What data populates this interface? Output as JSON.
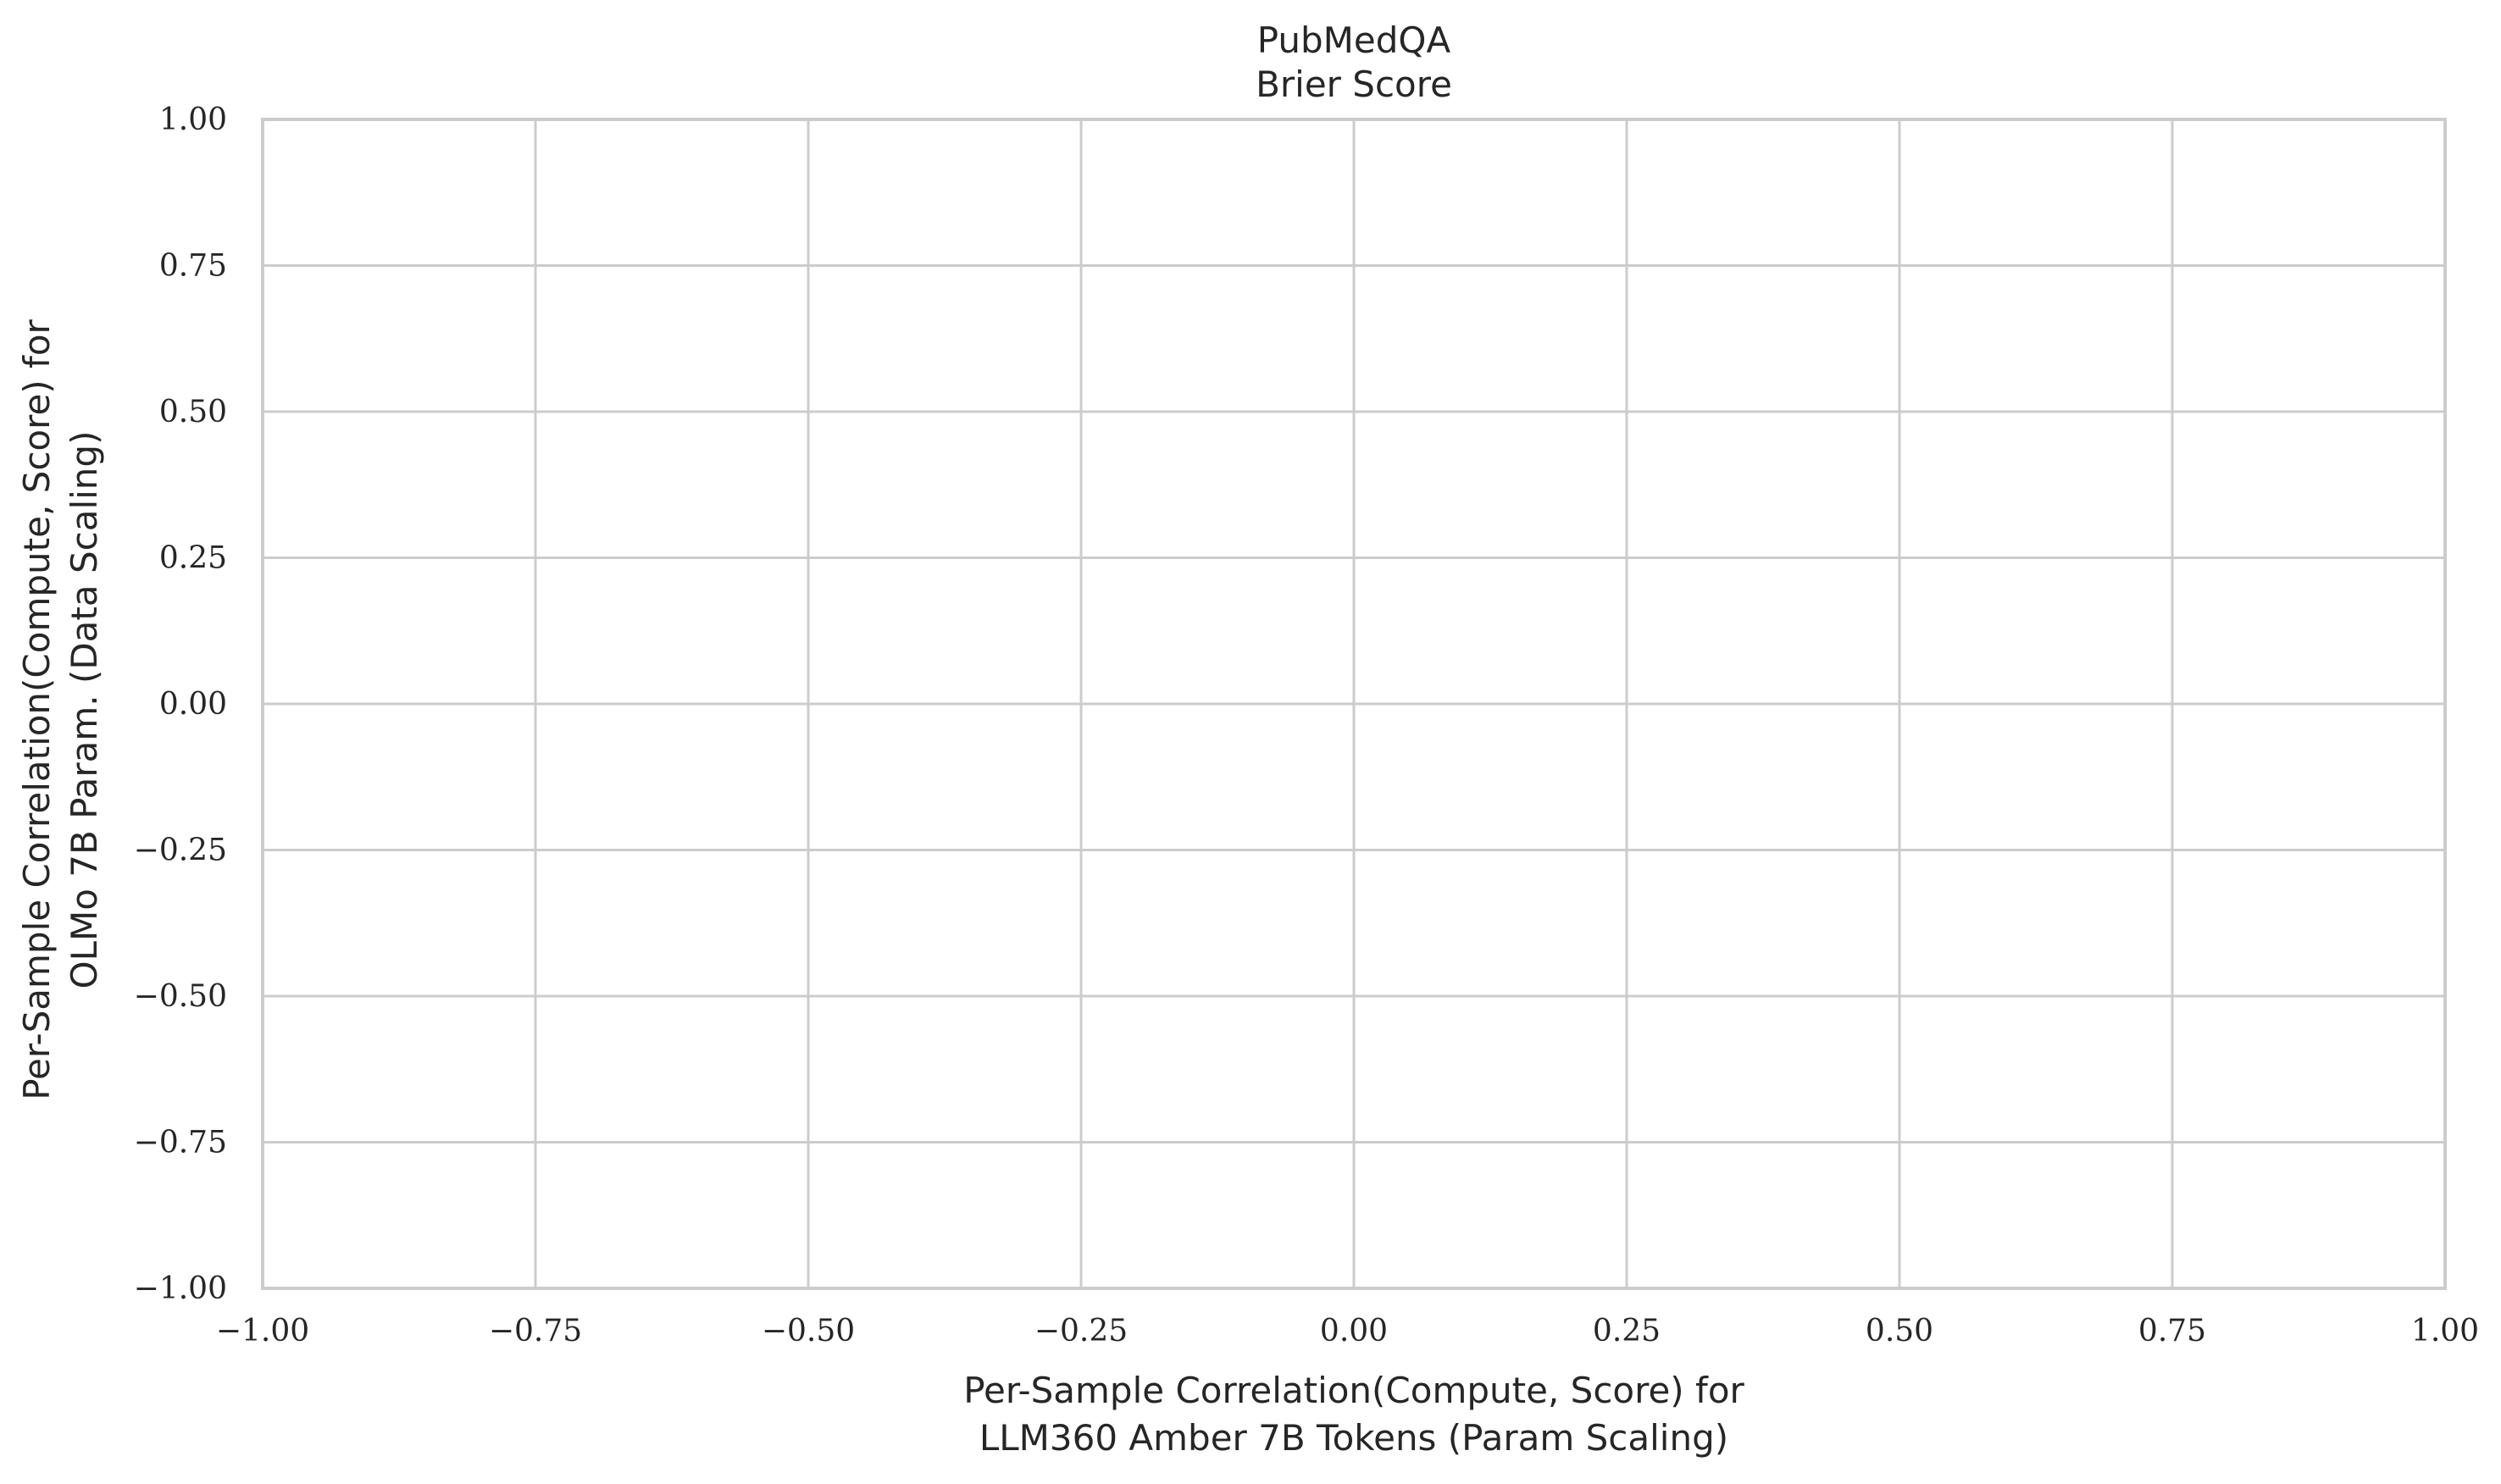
{
  "chart_data": {
    "type": "scatter",
    "title": "PubMedQA",
    "subtitle": "Brier Score",
    "xlabel_line1": "Per-Sample Correlation(Compute, Score) for",
    "xlabel_line2": "LLM360 Amber 7B Tokens (Param Scaling)",
    "ylabel_line1": "Per-Sample Correlation(Compute, Score) for",
    "ylabel_line2": "OLMo 7B Param. (Data Scaling)",
    "xlim": [
      -1.0,
      1.0
    ],
    "ylim": [
      -1.0,
      1.0
    ],
    "xticks": [
      -1.0,
      -0.75,
      -0.5,
      -0.25,
      0.0,
      0.25,
      0.5,
      0.75,
      1.0
    ],
    "yticks": [
      -1.0,
      -0.75,
      -0.5,
      -0.25,
      0.0,
      0.25,
      0.5,
      0.75,
      1.0
    ],
    "xtick_labels": [
      "−1.00",
      "−0.75",
      "−0.50",
      "−0.25",
      "0.00",
      "0.25",
      "0.50",
      "0.75",
      "1.00"
    ],
    "ytick_labels": [
      "−1.00",
      "−0.75",
      "−0.50",
      "−0.25",
      "0.00",
      "0.25",
      "0.50",
      "0.75",
      "1.00"
    ],
    "grid": true,
    "series": [],
    "grid_color": "#cccccc",
    "text_color": "#262626"
  }
}
